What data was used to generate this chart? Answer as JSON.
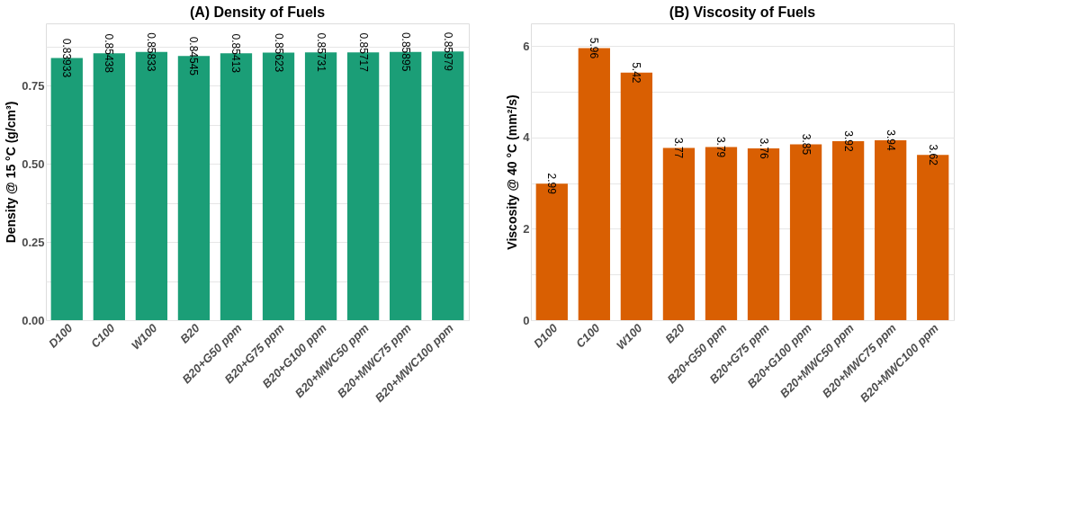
{
  "chart_data": [
    {
      "type": "bar",
      "title": "(A) Density of Fuels",
      "ylabel": "Density @ 15 °C (g/cm³)",
      "categories": [
        "D100",
        "C100",
        "W100",
        "B20",
        "B20+G50 ppm",
        "B20+G75 ppm",
        "B20+G100 ppm",
        "B20+MWC50 ppm",
        "B20+MWC75 ppm",
        "B20+MWC100 ppm"
      ],
      "series": [
        {
          "color": "#1b9e77",
          "values": [
            0.83933,
            0.85438,
            0.85833,
            0.84545,
            0.85413,
            0.85623,
            0.85731,
            0.85717,
            0.85895,
            0.85979
          ]
        }
      ],
      "ylim": [
        0,
        0.95
      ],
      "yticks": [
        {
          "value": 0,
          "label": "0.00"
        },
        {
          "value": 0.125,
          "label": null
        },
        {
          "value": 0.25,
          "label": "0.25"
        },
        {
          "value": 0.375,
          "label": null
        },
        {
          "value": 0.5,
          "label": "0.50"
        },
        {
          "value": 0.625,
          "label": null
        },
        {
          "value": 0.75,
          "label": "0.75"
        },
        {
          "value": 0.875,
          "label": null
        }
      ],
      "grid": "y",
      "data_labels": true
    },
    {
      "type": "bar",
      "title": "(B) Viscosity of Fuels",
      "ylabel": "Viscosity @ 40 °C (mm²/s)",
      "categories": [
        "D100",
        "C100",
        "W100",
        "B20",
        "B20+G50 ppm",
        "B20+G75 ppm",
        "B20+G100 ppm",
        "B20+MWC50 ppm",
        "B20+MWC75 ppm",
        "B20+MWC100 ppm"
      ],
      "series": [
        {
          "color": "#d95f02",
          "values": [
            2.99,
            5.96,
            5.42,
            3.77,
            3.79,
            3.76,
            3.85,
            3.92,
            3.94,
            3.62
          ]
        }
      ],
      "ylim": [
        0,
        6.5
      ],
      "yticks": [
        0,
        {
          "value": 1,
          "label": null
        },
        2,
        {
          "value": 3,
          "label": null
        },
        4,
        {
          "value": 5,
          "label": null
        },
        6
      ],
      "grid": "y",
      "data_labels": true
    }
  ]
}
